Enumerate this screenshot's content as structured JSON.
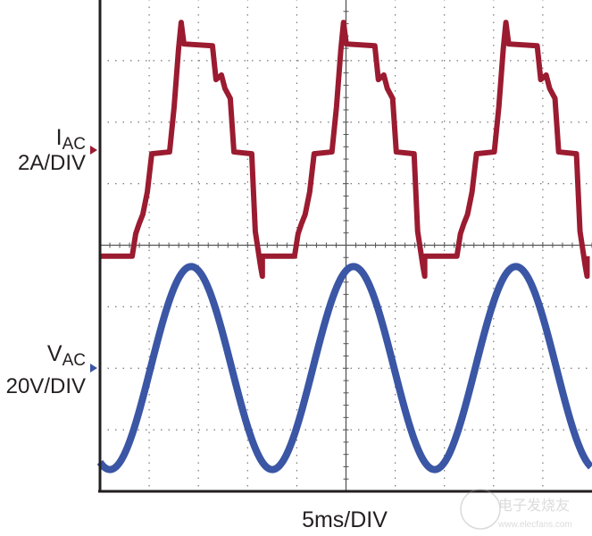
{
  "chart_data": {
    "type": "line",
    "title": "",
    "xlabel": "5ms/DIV",
    "x_unit": "ms",
    "x_per_div": 5,
    "x_divisions": 10,
    "y_divisions": 8,
    "grid": true,
    "series": [
      {
        "name": "I_AC",
        "label_main": "I",
        "label_sub": "AC",
        "scale_label": "2A/DIV",
        "unit": "A",
        "per_div": 2,
        "color": "#9b1b30",
        "period_ms": 16.5,
        "cycle_points": [
          [
            0,
            -3.45
          ],
          [
            3.27,
            -3.45
          ],
          [
            3.63,
            -2.72
          ],
          [
            3.99,
            -2.38
          ],
          [
            4.35,
            -2.09
          ],
          [
            4.81,
            -1.36
          ],
          [
            5.26,
            -0.12
          ],
          [
            7.07,
            -0.06
          ],
          [
            7.53,
            1.39
          ],
          [
            7.98,
            3.28
          ],
          [
            8.25,
            4.15
          ],
          [
            8.53,
            3.45
          ],
          [
            11.43,
            3.39
          ],
          [
            11.79,
            2.29
          ],
          [
            12.34,
            2.44
          ],
          [
            12.7,
            2.0
          ],
          [
            13.24,
            1.68
          ],
          [
            13.61,
            -0.06
          ],
          [
            15.42,
            -0.12
          ],
          [
            15.78,
            -2.64
          ],
          [
            16.33,
            -3.8
          ],
          [
            16.5,
            -4.1
          ]
        ],
        "cycle_start_ms": 0
      },
      {
        "name": "V_AC",
        "label_main": "V",
        "label_sub": "AC",
        "scale_label": "20V/DIV",
        "unit": "V",
        "per_div": 20,
        "color": "#3a56a5",
        "waveform": "sine",
        "amplitude": 33,
        "period_ms": 16.5,
        "peak_time_ms": 9.26
      }
    ]
  },
  "watermark": {
    "logo_text": "电子发烧友",
    "url": "www.elecfans.com"
  }
}
